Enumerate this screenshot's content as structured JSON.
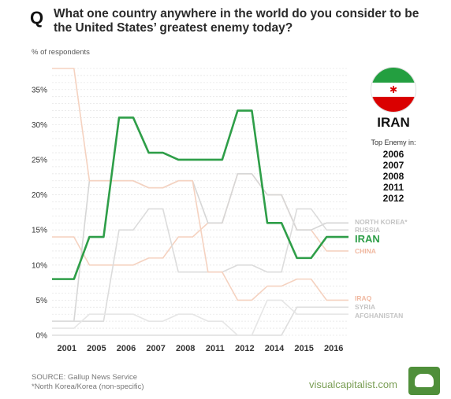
{
  "header": {
    "q_mark": "Q",
    "question": "What one country anywhere in the world do you consider to be the United States’ greatest enemy today?"
  },
  "chart_data": {
    "type": "line",
    "ylabel": "% of respondents",
    "ylim": [
      0,
      38
    ],
    "yticks": [
      0,
      5,
      10,
      15,
      20,
      25,
      30,
      35
    ],
    "ytick_labels": [
      "0%",
      "5%",
      "10%",
      "15%",
      "20%",
      "25%",
      "30%",
      "35%"
    ],
    "categories": [
      "2001",
      "2005",
      "2006",
      "2007",
      "2008",
      "2011",
      "2012",
      "2014",
      "2015",
      "2016"
    ],
    "grid": true,
    "series": [
      {
        "name": "IRAN",
        "color": "#2e9e48",
        "highlight": true,
        "values": [
          8,
          14,
          31,
          26,
          25,
          25,
          32,
          16,
          11,
          14
        ]
      },
      {
        "name": "CHINA",
        "color": "#f5d2c0",
        "values": [
          14,
          10,
          10,
          11,
          14,
          16,
          23,
          20,
          15,
          12
        ]
      },
      {
        "name": "NORTH KOREA*",
        "color": "#d6d6d6",
        "values": [
          2,
          22,
          22,
          21,
          22,
          16,
          23,
          20,
          15,
          16
        ]
      },
      {
        "name": "RUSSIA",
        "color": "#dcdcdc",
        "values": [
          2,
          2,
          15,
          18,
          9,
          9,
          10,
          9,
          18,
          15
        ]
      },
      {
        "name": "IRAQ",
        "color": "#f5d2c0",
        "values": [
          38,
          22,
          22,
          21,
          22,
          9,
          5,
          7,
          8,
          5
        ]
      },
      {
        "name": "SYRIA",
        "color": "#dedede",
        "values": [
          0,
          0,
          0,
          0,
          0,
          0,
          0,
          0,
          4,
          4
        ]
      },
      {
        "name": "AFGHANISTAN",
        "color": "#e6e6e6",
        "values": [
          1,
          3,
          3,
          2,
          3,
          2,
          0,
          5,
          3,
          3
        ]
      }
    ]
  },
  "sidebar": {
    "country": "IRAN",
    "top_enemy_label": "Top Enemy in:",
    "years": [
      "2006",
      "2007",
      "2008",
      "2011",
      "2012"
    ],
    "flag_colors": [
      "#239f40",
      "#ffffff",
      "#da0000"
    ],
    "emblem_icon": "iran-emblem-icon"
  },
  "footer": {
    "source": "SOURCE: Gallup News Service",
    "note": "*North Korea/Korea (non-specific)",
    "brand": "visualcapitalist.com",
    "logo_icon": "visualcapitalist-logo-icon"
  }
}
